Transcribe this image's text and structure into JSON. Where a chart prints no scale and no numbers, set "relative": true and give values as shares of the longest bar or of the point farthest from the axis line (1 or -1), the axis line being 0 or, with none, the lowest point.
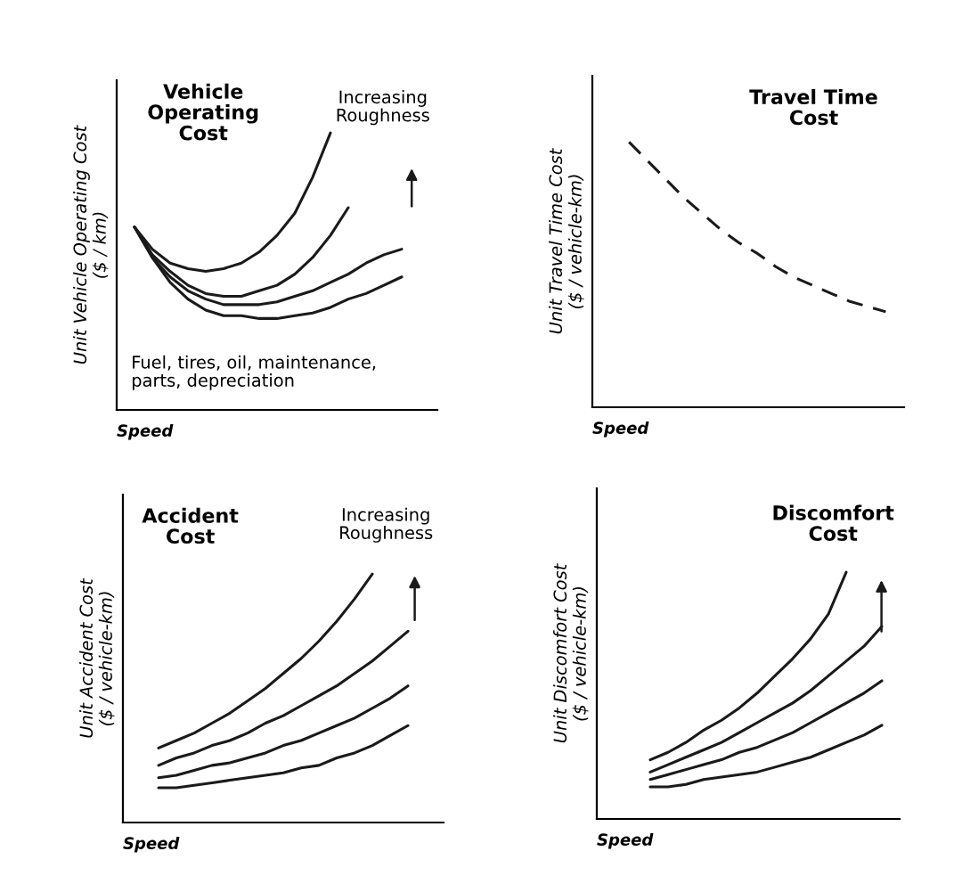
{
  "chart_data": [
    {
      "type": "line",
      "relative": true,
      "title": "Vehicle Operating Cost",
      "xlabel": "Speed",
      "ylabel": "Unit Vehicle Operating Cost ($ / km)",
      "annotations": [
        "Increasing Roughness",
        "Fuel, tires, oil, maintenance, parts, depreciation"
      ],
      "categories": [
        null,
        null,
        null,
        null,
        null,
        null,
        null,
        null,
        null,
        null,
        null,
        null,
        null,
        null,
        null,
        null,
        null,
        null,
        null
      ],
      "series": [
        {
          "color": "#1a1a1a",
          "values": [
            null,
            0.66,
            0.58,
            0.53,
            0.51,
            0.5,
            0.51,
            0.53,
            0.57,
            0.63,
            0.71,
            0.84,
            1.0,
            null,
            null,
            null,
            null,
            null,
            null
          ]
        },
        {
          "color": "#1a1a1a",
          "values": [
            null,
            0.66,
            0.56,
            0.5,
            0.45,
            0.42,
            0.41,
            0.41,
            0.43,
            0.45,
            0.49,
            0.55,
            0.63,
            0.73,
            null,
            null,
            null,
            null,
            null
          ]
        },
        {
          "color": "#1a1a1a",
          "values": [
            null,
            0.66,
            0.55,
            0.48,
            0.43,
            0.4,
            0.38,
            0.38,
            0.38,
            0.39,
            0.41,
            0.43,
            0.46,
            0.49,
            0.53,
            0.56,
            0.58,
            null,
            null
          ]
        },
        {
          "color": "#1a1a1a",
          "values": [
            null,
            0.66,
            0.55,
            0.46,
            0.4,
            0.36,
            0.34,
            0.34,
            0.33,
            0.33,
            0.34,
            0.35,
            0.37,
            0.4,
            0.42,
            0.45,
            0.48,
            null,
            null
          ]
        }
      ]
    },
    {
      "type": "line",
      "relative": true,
      "line_style": "dashed",
      "title": "Travel Time Cost",
      "xlabel": "Speed",
      "ylabel": "Unit Travel Time Cost ($ / vehicle-km)",
      "categories": [
        null,
        null,
        null,
        null,
        null,
        null,
        null,
        null,
        null,
        null,
        null,
        null,
        null,
        null,
        null,
        null,
        null,
        null
      ],
      "series": [
        {
          "color": "#1a1a1a",
          "values": [
            null,
            null,
            1.0,
            0.93,
            0.86,
            0.79,
            0.73,
            0.67,
            0.62,
            0.58,
            0.53,
            0.49,
            0.46,
            0.43,
            0.4,
            0.38,
            0.36,
            null
          ]
        }
      ]
    },
    {
      "type": "line",
      "relative": true,
      "title": "Accident Cost",
      "xlabel": "Speed",
      "ylabel": "Unit Accident Cost ($ / vehicle-km)",
      "annotations": [
        "Increasing Roughness"
      ],
      "categories": [
        null,
        null,
        null,
        null,
        null,
        null,
        null,
        null,
        null,
        null,
        null,
        null,
        null,
        null,
        null,
        null,
        null,
        null,
        null
      ],
      "series": [
        {
          "color": "#1a1a1a",
          "values": [
            null,
            null,
            0.3,
            0.33,
            0.36,
            0.4,
            0.44,
            0.49,
            0.54,
            0.6,
            0.66,
            0.73,
            0.81,
            0.9,
            1.0,
            null,
            null,
            null,
            null
          ]
        },
        {
          "color": "#1a1a1a",
          "values": [
            null,
            null,
            0.23,
            0.26,
            0.28,
            0.31,
            0.33,
            0.36,
            0.4,
            0.43,
            0.47,
            0.51,
            0.55,
            0.6,
            0.65,
            0.71,
            0.77,
            null,
            null
          ]
        },
        {
          "color": "#1a1a1a",
          "values": [
            null,
            null,
            0.18,
            0.19,
            0.21,
            0.23,
            0.24,
            0.26,
            0.28,
            0.31,
            0.33,
            0.36,
            0.39,
            0.42,
            0.46,
            0.5,
            0.55,
            null,
            null
          ]
        },
        {
          "color": "#1a1a1a",
          "values": [
            null,
            null,
            0.14,
            0.14,
            0.15,
            0.16,
            0.17,
            0.18,
            0.19,
            0.2,
            0.22,
            0.23,
            0.26,
            0.28,
            0.31,
            0.35,
            0.39,
            null,
            null
          ]
        }
      ]
    },
    {
      "type": "line",
      "relative": true,
      "title": "Discomfort Cost",
      "xlabel": "Speed",
      "ylabel": "Unit Discomfort Cost ($ / vehicle-km)",
      "categories": [
        null,
        null,
        null,
        null,
        null,
        null,
        null,
        null,
        null,
        null,
        null,
        null,
        null,
        null,
        null,
        null,
        null,
        null
      ],
      "series": [
        {
          "color": "#1a1a1a",
          "values": [
            null,
            null,
            null,
            0.24,
            0.27,
            0.31,
            0.36,
            0.4,
            0.45,
            0.51,
            0.58,
            0.65,
            0.73,
            0.83,
            1.0,
            null,
            null,
            null
          ]
        },
        {
          "color": "#1a1a1a",
          "values": [
            null,
            null,
            null,
            0.19,
            0.22,
            0.25,
            0.28,
            0.31,
            0.35,
            0.39,
            0.43,
            0.47,
            0.52,
            0.58,
            0.64,
            0.7,
            0.78,
            null
          ]
        },
        {
          "color": "#1a1a1a",
          "values": [
            null,
            null,
            null,
            0.16,
            0.18,
            0.2,
            0.22,
            0.24,
            0.27,
            0.29,
            0.32,
            0.35,
            0.39,
            0.43,
            0.47,
            0.51,
            0.56,
            null
          ]
        },
        {
          "color": "#1a1a1a",
          "values": [
            null,
            null,
            null,
            0.13,
            0.13,
            0.14,
            0.16,
            0.17,
            0.18,
            0.19,
            0.21,
            0.23,
            0.25,
            0.28,
            0.31,
            0.34,
            0.38,
            null
          ]
        }
      ]
    }
  ]
}
